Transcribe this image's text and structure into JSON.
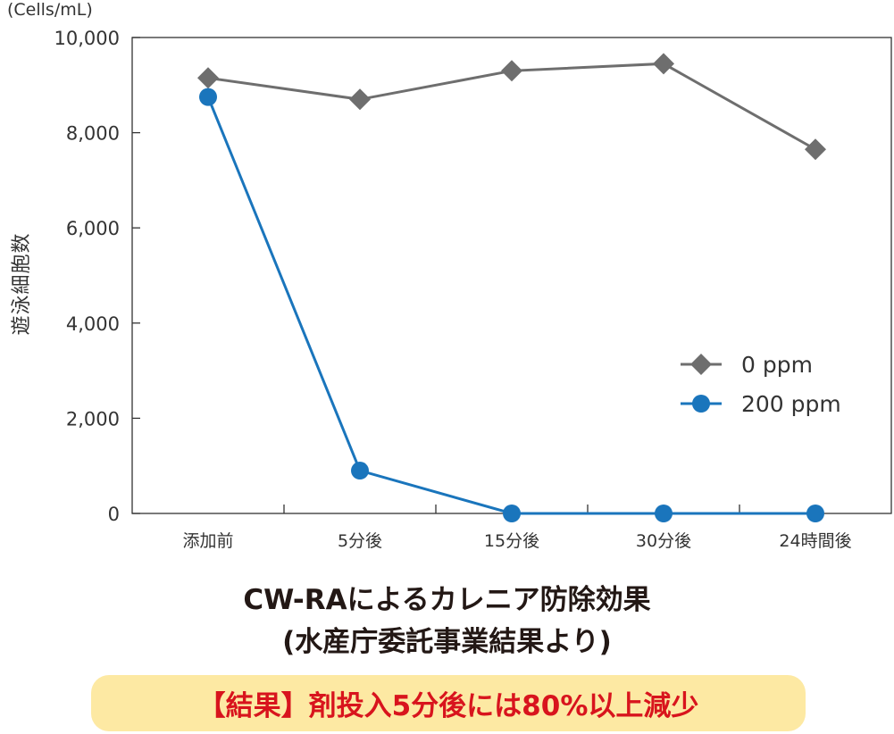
{
  "chart_data": {
    "type": "line",
    "unit_label": "(Cells/mL)",
    "ylabel": "遊泳細胞数",
    "xlabel": "",
    "categories": [
      "添加前",
      "5分後",
      "15分後",
      "30分後",
      "24時間後"
    ],
    "ylim": [
      0,
      10000
    ],
    "yticks": [
      0,
      2000,
      4000,
      6000,
      8000,
      10000
    ],
    "ytick_labels": [
      "0",
      "2,000",
      "4,000",
      "6,000",
      "8,000",
      "10,000"
    ],
    "grid": false,
    "legend_position": "center-right",
    "series": [
      {
        "name": "0 ppm",
        "values": [
          9150,
          8700,
          9300,
          9450,
          7650
        ],
        "color": "#6e6e6e",
        "marker": "diamond"
      },
      {
        "name": "200 ppm",
        "values": [
          8750,
          900,
          0,
          0,
          0
        ],
        "color": "#1a75bc",
        "marker": "circle"
      }
    ]
  },
  "caption": {
    "line1": "CW-RAによるカレニア防除効果",
    "line2": "(水産庁委託事業結果より)"
  },
  "result_banner": "【結果】剤投入5分後には80%以上減少",
  "colors": {
    "axis": "#333333",
    "banner_bg": "#fde9a3",
    "banner_text": "#d8141d",
    "caption_text": "#231815"
  }
}
